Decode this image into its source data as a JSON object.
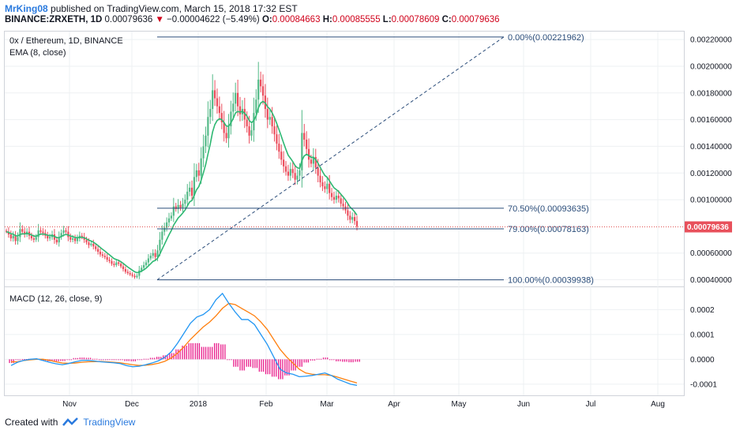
{
  "header": {
    "author": "MrKing08",
    "published": "published on TradingView.com, March 15, 2018 17:32 EST",
    "symbol_line": "BINANCE:ZRXETH, 1D",
    "last": "0.00079636",
    "arrow": "▼",
    "change": "−0.00004622 (−5.49%)",
    "o_label": "O:",
    "o_value": "0.00084663",
    "h_label": "H:",
    "h_value": "0.00085555",
    "l_label": "L:",
    "l_value": "0.00078609",
    "c_label": "C:",
    "c_value": "0.00079636"
  },
  "legend": {
    "title": "0x / Ethereum, 1D, BINANCE",
    "ema": "EMA (8, close)",
    "macd": "MACD (12, 26, close, 9)"
  },
  "fib": [
    {
      "label": "0.00%(0.00221962)",
      "value": 0.00221962
    },
    {
      "label": "70.50%(0.00093635)",
      "value": 0.00093635
    },
    {
      "label": "79.00%(0.00078163)",
      "value": 0.00078163
    },
    {
      "label": "100.00%(0.00039938)",
      "value": 0.00039938
    }
  ],
  "price_badge": "0.00079636",
  "footer": {
    "created": "Created with",
    "brand": "TradingView"
  },
  "colors": {
    "up": "#53b987",
    "down": "#eb4d5c",
    "ema": "#2eb872",
    "fib": "#2b4d7a",
    "macd": "#2196f3",
    "signal": "#ff7f0e",
    "hist": "#e91e8c",
    "price_line": "#e05050"
  },
  "chart_data": [
    {
      "type": "candlestick",
      "title": "0x / Ethereum, 1D, BINANCE",
      "x_ticks": [
        "Nov",
        "Dec",
        "2018",
        "Feb",
        "Mar",
        "Apr",
        "May",
        "Jun",
        "Jul",
        "Aug"
      ],
      "y_ticks": [
        "0.00220000",
        "0.00200000",
        "0.00180000",
        "0.00160000",
        "0.00140000",
        "0.00120000",
        "0.00100000",
        "0.00060000",
        "0.00040000"
      ],
      "ylim": [
        0.00035,
        0.00226
      ],
      "current_price": 0.00079636,
      "overlay": "EMA (8, close)",
      "series": [
        {
          "name": "close",
          "values": [
            0.00076,
            0.00074,
            0.00071,
            0.00073,
            0.00069,
            0.00072,
            0.00078,
            0.00076,
            0.00074,
            0.00076,
            0.00073,
            0.00071,
            0.0007,
            0.00072,
            0.00077,
            0.00076,
            0.00075,
            0.00073,
            0.00071,
            0.00072,
            0.00074,
            0.0007,
            0.00068,
            0.00072,
            0.00075,
            0.00077,
            0.00076,
            0.00072,
            0.0007,
            0.00071,
            0.00069,
            0.00071,
            0.00073,
            0.00072,
            0.0007,
            0.00068,
            0.00066,
            0.00067,
            0.00065,
            0.00063,
            0.00061,
            0.00059,
            0.00058,
            0.00057,
            0.00055,
            0.00054,
            0.00052,
            0.00051,
            0.00053,
            0.00052,
            0.0005,
            0.00048,
            0.00046,
            0.00045,
            0.00044,
            0.00043,
            0.00042,
            0.00043,
            0.00047,
            0.00049,
            0.00051,
            0.00053,
            0.00056,
            0.00058,
            0.0006,
            0.00057,
            0.00062,
            0.0007,
            0.00076,
            0.00079,
            0.00083,
            0.00086,
            0.00088,
            0.00095,
            0.00093,
            0.00096,
            0.00094,
            0.00097,
            0.001,
            0.00106,
            0.00109,
            0.00103,
            0.00117,
            0.00122,
            0.00118,
            0.00131,
            0.0014,
            0.00148,
            0.00162,
            0.00168,
            0.00182,
            0.00176,
            0.0017,
            0.00165,
            0.00158,
            0.0015,
            0.00146,
            0.00155,
            0.00166,
            0.00172,
            0.0018,
            0.0017,
            0.00164,
            0.00168,
            0.0016,
            0.00155,
            0.00148,
            0.00152,
            0.00165,
            0.00175,
            0.0019,
            0.00185,
            0.00178,
            0.00168,
            0.0016,
            0.00162,
            0.00155,
            0.00149,
            0.00142,
            0.00136,
            0.0013,
            0.00125,
            0.00121,
            0.00118,
            0.00123,
            0.0012,
            0.00115,
            0.00118,
            0.00122,
            0.0015,
            0.00145,
            0.00138,
            0.0013,
            0.00127,
            0.00132,
            0.00124,
            0.00118,
            0.00113,
            0.0011,
            0.00108,
            0.00112,
            0.00105,
            0.00102,
            0.001,
            0.00103,
            0.00101,
            0.00097,
            0.00095,
            0.00092,
            0.00088,
            0.00085,
            0.00087,
            0.00084,
            0.0008
          ]
        }
      ]
    },
    {
      "type": "line",
      "title": "MACD (12, 26, close, 9)",
      "y_ticks": [
        "0.0002",
        "0.0001",
        "0.0000",
        "-0.0001"
      ],
      "ylim": [
        -0.000145,
        0.00029
      ],
      "series": [
        {
          "name": "MACD",
          "values": [
            -2.5e-05,
            -1.2e-05,
            -4e-06,
            0.0,
            2e-06,
            -5e-06,
            -1.2e-05,
            -1.8e-05,
            -2.2e-05,
            -1.7e-05,
            -1e-05,
            -5e-06,
            -4e-06,
            -7e-06,
            -1e-05,
            -1.2e-05,
            -1.4e-05,
            -1.7e-05,
            -2.5e-05,
            -3e-05,
            -2.8e-05,
            -2.2e-05,
            -1.5e-05,
            -6e-06,
            8e-06,
            3e-05,
            6.5e-05,
            0.000105,
            0.000145,
            0.00017,
            0.00018,
            0.0002,
            0.00024,
            0.000265,
            0.000225,
            0.00019,
            0.00016,
            0.00016,
            0.00014,
            0.0001,
            6e-05,
            1e-05,
            -4e-05,
            -5.5e-05,
            -6e-05,
            -7e-05,
            -6.8e-05,
            -6.5e-05,
            -6e-05,
            -5.5e-05,
            -6.5e-05,
            -8e-05,
            -9e-05,
            -0.0001,
            -0.000105
          ]
        },
        {
          "name": "Signal",
          "values": [
            -1e-05,
            -1e-05,
            -5e-06,
            -2e-06,
            0.0,
            0.0,
            -4e-06,
            -1e-05,
            -1.5e-05,
            -1.6e-05,
            -1.5e-05,
            -1.2e-05,
            -1e-05,
            -9e-06,
            -9e-06,
            -1e-05,
            -1.2e-05,
            -1.4e-05,
            -1.8e-05,
            -2.2e-05,
            -2.5e-05,
            -2.4e-05,
            -2.1e-05,
            -1.6e-05,
            -8e-06,
            5e-06,
            2.5e-05,
            5e-05,
            8e-05,
            0.000105,
            0.00013,
            0.00015,
            0.000175,
            0.000205,
            0.000225,
            0.00022,
            0.000205,
            0.00019,
            0.000175,
            0.00015,
            0.00012,
            8e-05,
            4e-05,
            1e-05,
            -1.5e-05,
            -4e-05,
            -5.5e-05,
            -6e-05,
            -6.2e-05,
            -6.2e-05,
            -6.5e-05,
            -7.2e-05,
            -8e-05,
            -8.8e-05,
            -9.5e-05
          ]
        }
      ]
    }
  ]
}
